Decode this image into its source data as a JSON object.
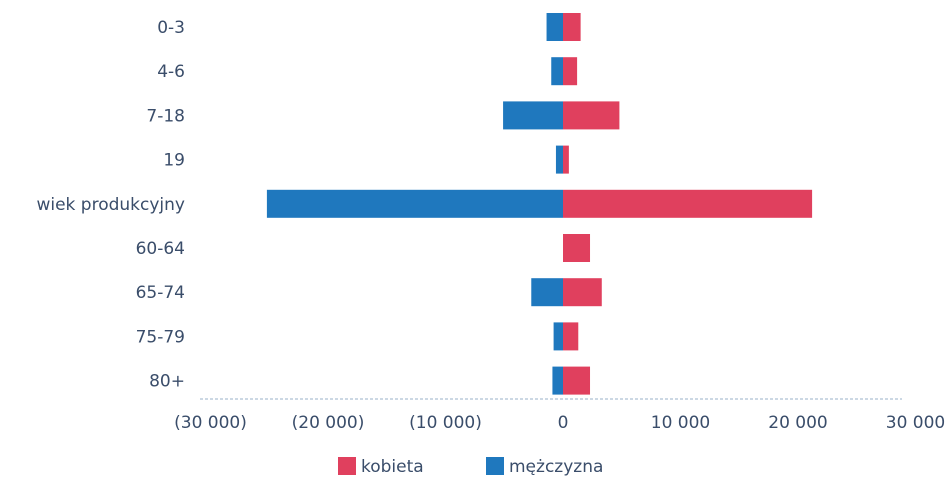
{
  "chart_data": {
    "type": "bar",
    "orientation": "horizontal",
    "stacking": "diverging",
    "categories": [
      "0-3",
      "4-6",
      "7-18",
      "19",
      "wiek produkcyjny",
      "60-64",
      "65-74",
      "75-79",
      "80+"
    ],
    "series": [
      {
        "name": "kobieta",
        "color": "#e0405e",
        "values": [
          1500,
          1200,
          4800,
          500,
          21200,
          2300,
          3300,
          1300,
          2300
        ]
      },
      {
        "name": "mężczyzna",
        "color": "#1f78be",
        "values": [
          -1400,
          -1000,
          -5100,
          -600,
          -25200,
          0,
          -2700,
          -800,
          -900
        ]
      }
    ],
    "xlim": [
      -30000,
      30000
    ],
    "x_ticks": [
      -30000,
      -20000,
      -10000,
      0,
      10000,
      20000,
      30000
    ],
    "x_tick_labels": [
      "(30 000)",
      "(20 000)",
      "(10 000)",
      "0",
      "10 000",
      "20 000",
      "30 000"
    ],
    "title": "",
    "xlabel": "",
    "ylabel": "",
    "grid": false,
    "legend": {
      "placement": "bottom-center",
      "items": [
        {
          "label": "kobieta",
          "color": "#e0405e"
        },
        {
          "label": "mężczyzna",
          "color": "#1f78be"
        }
      ]
    }
  }
}
